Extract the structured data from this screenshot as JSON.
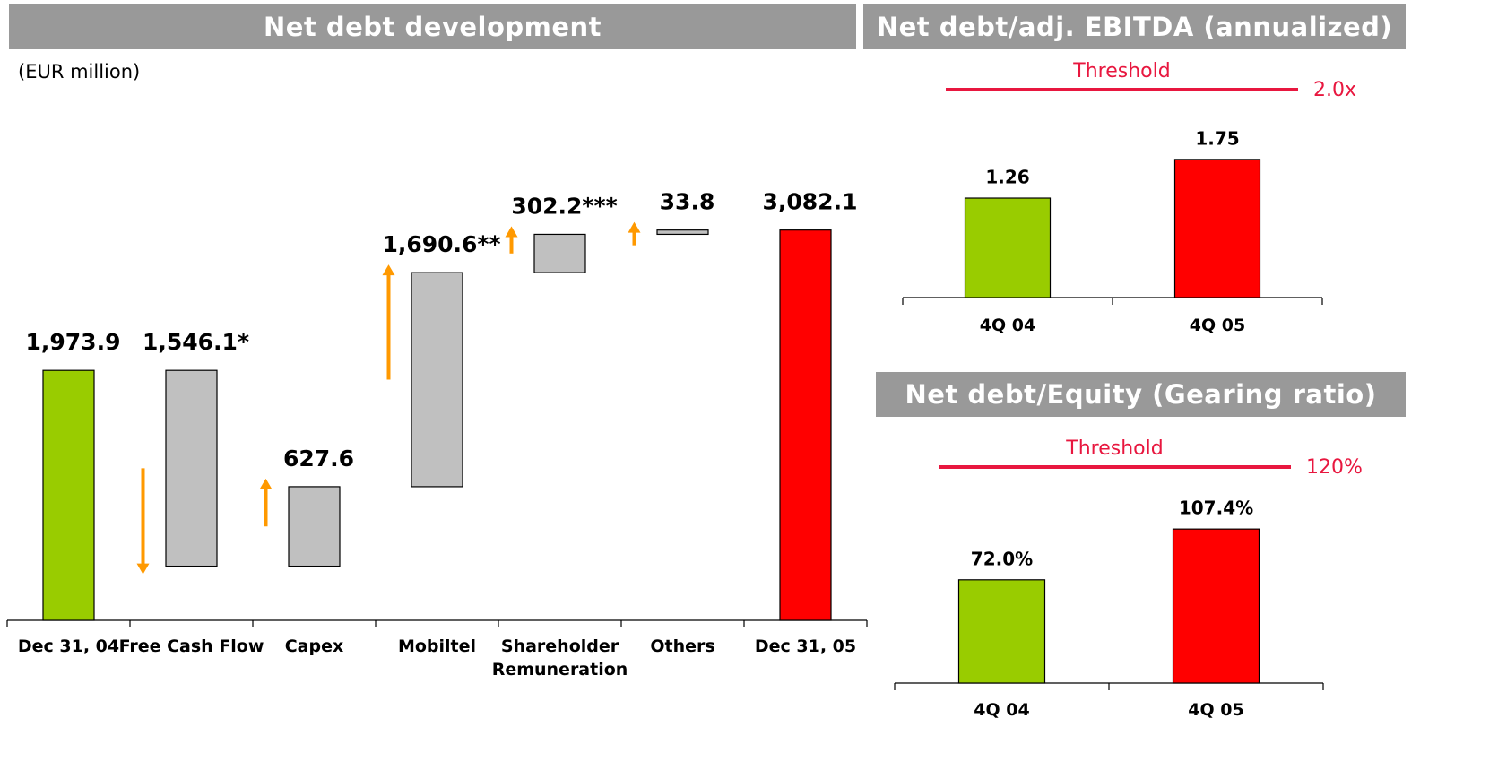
{
  "chart_data": [
    {
      "type": "waterfall",
      "title": "Net debt development",
      "subtitle": "(EUR million)",
      "categories": [
        "Dec 31, 04",
        "Free Cash Flow",
        "Capex",
        "Mobiltel",
        "Shareholder Remuneration",
        "Others",
        "Dec 31, 05"
      ],
      "values": [
        1973.9,
        -1546.1,
        627.6,
        1690.6,
        302.2,
        33.8,
        3082.1
      ],
      "value_labels": [
        "1,973.9",
        "1,546.1*",
        "627.6",
        "1,690.6**",
        "302.2***",
        "33.8",
        "3,082.1"
      ],
      "colors": [
        "#99cc00",
        "#c0c0c0",
        "#c0c0c0",
        "#c0c0c0",
        "#c0c0c0",
        "#c0c0c0",
        "#ff0000"
      ],
      "arrow_color": "#ff9900",
      "ylim": [
        0,
        4000
      ]
    },
    {
      "type": "bar",
      "title": "Net debt/adj. EBITDA (annualized)",
      "categories": [
        "4Q 04",
        "4Q 05"
      ],
      "values": [
        1.26,
        1.75
      ],
      "colors": [
        "#99cc00",
        "#ff0000"
      ],
      "ylim": [
        0,
        2.6
      ],
      "threshold": {
        "label": "Threshold",
        "value": 2.0,
        "value_label": "2.0x",
        "color": "#e8173f"
      }
    },
    {
      "type": "bar",
      "title": "Net debt/Equity (Gearing ratio)",
      "categories": [
        "4Q 04",
        "4Q 05"
      ],
      "values": [
        72.0,
        107.4
      ],
      "value_labels": [
        "72.0%",
        "107.4%"
      ],
      "colors": [
        "#99cc00",
        "#ff0000"
      ],
      "ylim": [
        0,
        150
      ],
      "threshold": {
        "label": "Threshold",
        "value": 120,
        "value_label": "120%",
        "color": "#e8173f"
      }
    }
  ]
}
